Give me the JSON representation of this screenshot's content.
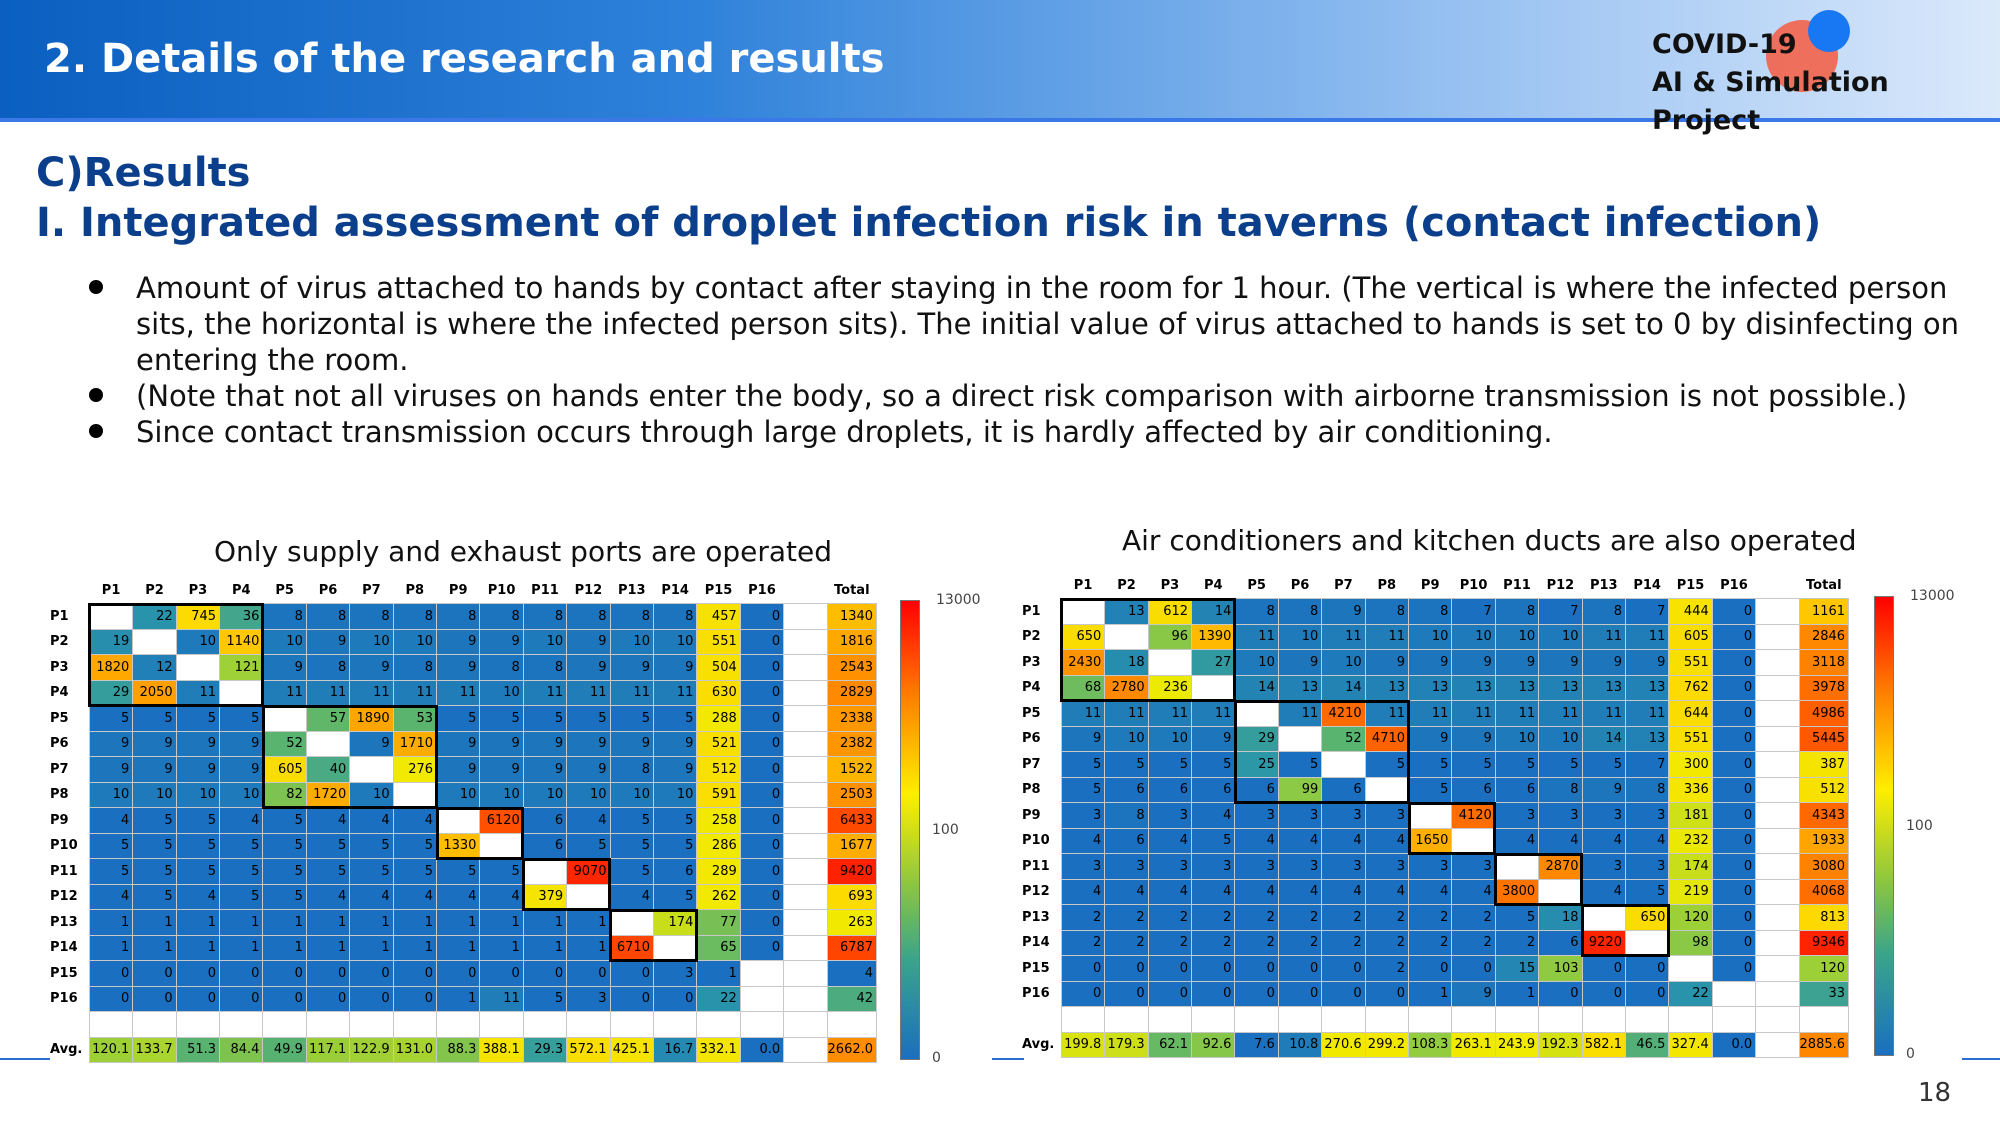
{
  "header": {
    "section_title": "2. Details of the research and results",
    "logo_line1": "COVID-19",
    "logo_line2": "AI & Simulation Project"
  },
  "results": {
    "heading1": "C)Results",
    "heading2": "I. Integrated assessment of droplet infection risk in taverns (contact infection)"
  },
  "bullets": [
    "Amount of virus attached to hands by contact after staying in the room for 1 hour. (The vertical is where the infected person sits, the horizontal is where the infected person sits). The initial value of virus attached to hands is set to 0 by disinfecting on entering the room.",
    "(Note that not all viruses on hands enter the body, so a direct risk comparison with airborne transmission is not possible.)",
    "Since contact transmission occurs through large droplets, it is hardly affected by air conditioning."
  ],
  "colors": {
    "low": "#1a6fc0",
    "mid": "#ffee00",
    "high": "#ff0000",
    "title_blue": "#0b3f8c"
  },
  "chart_data": [
    {
      "type": "heatmap",
      "title": "Only supply and exhaust ports are operated",
      "columns": [
        "P1",
        "P2",
        "P3",
        "P4",
        "P5",
        "P6",
        "P7",
        "P8",
        "P9",
        "P10",
        "P11",
        "P12",
        "P13",
        "P14",
        "P15",
        "P16"
      ],
      "rows": [
        "P1",
        "P2",
        "P3",
        "P4",
        "P5",
        "P6",
        "P7",
        "P8",
        "P9",
        "P10",
        "P11",
        "P12",
        "P13",
        "P14",
        "P15",
        "P16"
      ],
      "total_label": "Total",
      "avg_label": "Avg.",
      "values": [
        [
          null,
          22,
          745,
          36,
          8,
          8,
          8,
          8,
          8,
          8,
          8,
          8,
          8,
          8,
          457,
          0
        ],
        [
          19,
          null,
          10,
          1140,
          10,
          9,
          10,
          10,
          9,
          9,
          10,
          9,
          10,
          10,
          551,
          0
        ],
        [
          1820,
          12,
          null,
          121,
          9,
          8,
          9,
          8,
          9,
          8,
          8,
          9,
          9,
          9,
          504,
          0
        ],
        [
          29,
          2050,
          11,
          null,
          11,
          11,
          11,
          11,
          11,
          10,
          11,
          11,
          11,
          11,
          630,
          0
        ],
        [
          5,
          5,
          5,
          5,
          null,
          57,
          1890,
          53,
          5,
          5,
          5,
          5,
          5,
          5,
          288,
          0
        ],
        [
          9,
          9,
          9,
          9,
          52,
          null,
          9,
          1710,
          9,
          9,
          9,
          9,
          9,
          9,
          521,
          0
        ],
        [
          9,
          9,
          9,
          9,
          605,
          40,
          null,
          276,
          9,
          9,
          9,
          9,
          8,
          9,
          512,
          0
        ],
        [
          10,
          10,
          10,
          10,
          82,
          1720,
          10,
          null,
          10,
          10,
          10,
          10,
          10,
          10,
          591,
          0
        ],
        [
          4,
          5,
          5,
          4,
          5,
          4,
          4,
          4,
          null,
          6120,
          6,
          4,
          5,
          5,
          258,
          0
        ],
        [
          5,
          5,
          5,
          5,
          5,
          5,
          5,
          5,
          1330,
          null,
          6,
          5,
          5,
          5,
          286,
          0
        ],
        [
          5,
          5,
          5,
          5,
          5,
          5,
          5,
          5,
          5,
          5,
          null,
          9070,
          5,
          6,
          289,
          0
        ],
        [
          4,
          5,
          4,
          5,
          5,
          4,
          4,
          4,
          4,
          4,
          379,
          null,
          4,
          5,
          262,
          0
        ],
        [
          1,
          1,
          1,
          1,
          1,
          1,
          1,
          1,
          1,
          1,
          1,
          1,
          null,
          174,
          77,
          0
        ],
        [
          1,
          1,
          1,
          1,
          1,
          1,
          1,
          1,
          1,
          1,
          1,
          1,
          6710,
          null,
          65,
          0
        ],
        [
          0,
          0,
          0,
          0,
          0,
          0,
          0,
          0,
          0,
          0,
          0,
          0,
          0,
          3,
          1,
          null
        ],
        [
          0,
          0,
          0,
          0,
          0,
          0,
          0,
          0,
          1,
          11,
          5,
          3,
          0,
          0,
          22,
          null
        ]
      ],
      "totals": [
        1340,
        1816,
        2543,
        2829,
        2338,
        2382,
        1522,
        2503,
        6433,
        1677,
        9420,
        693,
        263,
        6787,
        4,
        42
      ],
      "averages": [
        "120.1",
        "133.7",
        "51.3",
        "84.4",
        "49.9",
        "117.1",
        "122.9",
        "131.0",
        "88.3",
        "388.1",
        "29.3",
        "572.1",
        "425.1",
        "16.7",
        "332.1",
        "0.0"
      ],
      "avg_total": "2662.0",
      "colorbar": {
        "max": "13000",
        "mid": "100",
        "min": "0"
      }
    },
    {
      "type": "heatmap",
      "title": "Air conditioners and kitchen ducts are also operated",
      "columns": [
        "P1",
        "P2",
        "P3",
        "P4",
        "P5",
        "P6",
        "P7",
        "P8",
        "P9",
        "P10",
        "P11",
        "P12",
        "P13",
        "P14",
        "P15",
        "P16"
      ],
      "rows": [
        "P1",
        "P2",
        "P3",
        "P4",
        "P5",
        "P6",
        "P7",
        "P8",
        "P9",
        "P10",
        "P11",
        "P12",
        "P13",
        "P14",
        "P15",
        "P16"
      ],
      "total_label": "Total",
      "avg_label": "Avg.",
      "values": [
        [
          null,
          13,
          612,
          14,
          8,
          8,
          9,
          8,
          8,
          7,
          8,
          7,
          8,
          7,
          444,
          0
        ],
        [
          650,
          null,
          96,
          1390,
          11,
          10,
          11,
          11,
          10,
          10,
          10,
          10,
          11,
          11,
          605,
          0
        ],
        [
          2430,
          18,
          null,
          27,
          10,
          9,
          10,
          9,
          9,
          9,
          9,
          9,
          9,
          9,
          551,
          0
        ],
        [
          68,
          2780,
          236,
          null,
          14,
          13,
          14,
          13,
          13,
          13,
          13,
          13,
          13,
          13,
          762,
          0
        ],
        [
          11,
          11,
          11,
          11,
          null,
          11,
          4210,
          11,
          11,
          11,
          11,
          11,
          11,
          11,
          644,
          0
        ],
        [
          9,
          10,
          10,
          9,
          29,
          null,
          52,
          4710,
          9,
          9,
          10,
          10,
          14,
          13,
          551,
          0
        ],
        [
          5,
          5,
          5,
          5,
          25,
          5,
          null,
          5,
          5,
          5,
          5,
          5,
          5,
          7,
          300,
          0
        ],
        [
          5,
          6,
          6,
          6,
          6,
          99,
          6,
          null,
          5,
          6,
          6,
          8,
          9,
          8,
          336,
          0
        ],
        [
          3,
          8,
          3,
          4,
          3,
          3,
          3,
          3,
          null,
          4120,
          3,
          3,
          3,
          3,
          181,
          0
        ],
        [
          4,
          6,
          4,
          5,
          4,
          4,
          4,
          4,
          1650,
          null,
          4,
          4,
          4,
          4,
          232,
          0
        ],
        [
          3,
          3,
          3,
          3,
          3,
          3,
          3,
          3,
          3,
          3,
          null,
          2870,
          3,
          3,
          174,
          0
        ],
        [
          4,
          4,
          4,
          4,
          4,
          4,
          4,
          4,
          4,
          4,
          3800,
          null,
          4,
          5,
          219,
          0
        ],
        [
          2,
          2,
          2,
          2,
          2,
          2,
          2,
          2,
          2,
          2,
          5,
          18,
          null,
          650,
          120,
          0
        ],
        [
          2,
          2,
          2,
          2,
          2,
          2,
          2,
          2,
          2,
          2,
          2,
          6,
          9220,
          null,
          98,
          0
        ],
        [
          0,
          0,
          0,
          0,
          0,
          0,
          0,
          2,
          0,
          0,
          15,
          103,
          0,
          0,
          null,
          0
        ],
        [
          0,
          0,
          0,
          0,
          0,
          0,
          0,
          0,
          1,
          9,
          1,
          0,
          0,
          0,
          22,
          null
        ]
      ],
      "totals": [
        1161,
        2846,
        3118,
        3978,
        4986,
        5445,
        387,
        512,
        4343,
        1933,
        3080,
        4068,
        813,
        9346,
        120,
        33
      ],
      "averages": [
        "199.8",
        "179.3",
        "62.1",
        "92.6",
        "7.6",
        "10.8",
        "270.6",
        "299.2",
        "108.3",
        "263.1",
        "243.9",
        "192.3",
        "582.1",
        "46.5",
        "327.4",
        "0.0"
      ],
      "avg_total": "2885.6",
      "colorbar": {
        "max": "13000",
        "mid": "100",
        "min": "0"
      }
    }
  ],
  "page_number": "18"
}
